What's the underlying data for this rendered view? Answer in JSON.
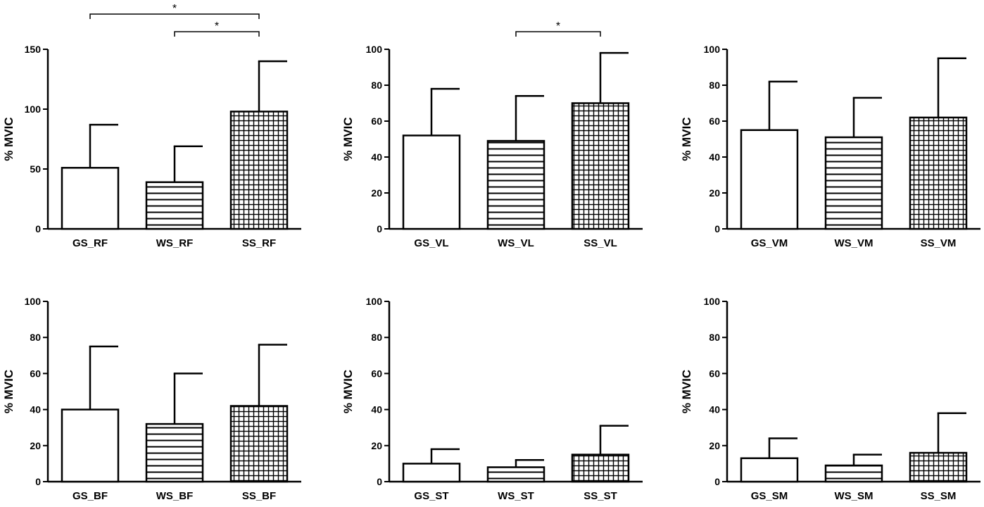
{
  "chart_data": [
    {
      "type": "bar",
      "categories": [
        "GS_RF",
        "WS_RF",
        "SS_RF"
      ],
      "values": [
        51,
        39,
        98
      ],
      "error_upper": [
        87,
        69,
        140
      ],
      "ylabel": "% MVIC",
      "ylim": [
        0,
        150
      ],
      "yticks": [
        "0",
        "50",
        "100",
        "150"
      ],
      "significance": [
        {
          "from": 0,
          "to": 2,
          "label": "*"
        },
        {
          "from": 1,
          "to": 2,
          "label": "*"
        }
      ]
    },
    {
      "type": "bar",
      "categories": [
        "GS_VL",
        "WS_VL",
        "SS_VL"
      ],
      "values": [
        52,
        49,
        70
      ],
      "error_upper": [
        78,
        74,
        98
      ],
      "ylabel": "% MVIC",
      "ylim": [
        0,
        100
      ],
      "yticks": [
        "0",
        "20",
        "40",
        "60",
        "80",
        "100"
      ],
      "significance": [
        {
          "from": 1,
          "to": 2,
          "label": "*"
        }
      ]
    },
    {
      "type": "bar",
      "categories": [
        "GS_VM",
        "WS_VM",
        "SS_VM"
      ],
      "values": [
        55,
        51,
        62
      ],
      "error_upper": [
        82,
        73,
        95
      ],
      "ylabel": "% MVIC",
      "ylim": [
        0,
        100
      ],
      "yticks": [
        "0",
        "20",
        "40",
        "60",
        "80",
        "100"
      ],
      "significance": []
    },
    {
      "type": "bar",
      "categories": [
        "GS_BF",
        "WS_BF",
        "SS_BF"
      ],
      "values": [
        40,
        32,
        42
      ],
      "error_upper": [
        75,
        60,
        76
      ],
      "ylabel": "% MVIC",
      "ylim": [
        0,
        100
      ],
      "yticks": [
        "0",
        "20",
        "40",
        "60",
        "80",
        "100"
      ],
      "significance": []
    },
    {
      "type": "bar",
      "categories": [
        "GS_ST",
        "WS_ST",
        "SS_ST"
      ],
      "values": [
        10,
        8,
        15
      ],
      "error_upper": [
        18,
        12,
        31
      ],
      "ylabel": "% MVIC",
      "ylim": [
        0,
        100
      ],
      "yticks": [
        "0",
        "20",
        "40",
        "60",
        "80",
        "100"
      ],
      "significance": []
    },
    {
      "type": "bar",
      "categories": [
        "GS_SM",
        "WS_SM",
        "SS_SM"
      ],
      "values": [
        13,
        9,
        16
      ],
      "error_upper": [
        24,
        15,
        38
      ],
      "ylabel": "% MVIC",
      "ylim": [
        0,
        100
      ],
      "yticks": [
        "0",
        "20",
        "40",
        "60",
        "80",
        "100"
      ],
      "significance": []
    }
  ],
  "bar_patterns": [
    "open",
    "horizontal-stripes",
    "grid"
  ]
}
